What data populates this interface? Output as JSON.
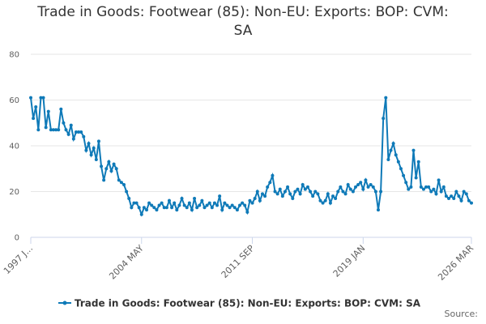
{
  "chart_data": {
    "type": "line",
    "title": "Trade in Goods: Footwear (85): Non-EU: Exports: BOP: CVM: SA",
    "source": "Source:",
    "categories": [
      "1997 J...",
      null,
      null,
      null,
      null,
      null,
      null,
      null,
      null,
      null,
      null,
      null,
      null,
      null,
      null,
      null,
      null,
      null,
      null,
      null,
      null,
      null,
      null,
      null,
      null,
      null,
      null,
      null,
      null,
      null,
      null,
      null,
      null,
      null,
      null,
      null,
      null,
      null,
      null,
      null,
      null,
      null,
      null,
      null,
      "2004 MAY",
      null,
      null,
      null,
      null,
      null,
      null,
      null,
      null,
      null,
      null,
      null,
      null,
      null,
      null,
      null,
      null,
      null,
      null,
      null,
      null,
      null,
      null,
      null,
      null,
      null,
      null,
      null,
      null,
      null,
      null,
      null,
      null,
      null,
      null,
      null,
      null,
      null,
      null,
      null,
      null,
      null,
      null,
      null,
      "2011 SEP",
      null,
      null,
      null,
      null,
      null,
      null,
      null,
      null,
      null,
      null,
      null,
      null,
      null,
      null,
      null,
      null,
      null,
      null,
      null,
      null,
      null,
      null,
      null,
      null,
      null,
      null,
      null,
      null,
      null,
      null,
      null,
      null,
      null,
      null,
      null,
      null,
      null,
      null,
      null,
      null,
      null,
      null,
      null,
      "2019 JAN",
      null,
      null,
      null,
      null,
      null,
      null,
      null,
      null,
      null,
      null,
      null,
      null,
      null,
      null,
      null,
      null,
      null,
      null,
      null,
      null,
      null,
      null,
      null,
      null,
      null,
      null,
      null,
      null,
      null,
      null,
      null,
      null,
      null,
      null,
      null,
      null,
      null,
      null,
      null,
      null,
      null,
      null,
      "2026 MAR"
    ],
    "series": [
      {
        "name": "Trade in Goods: Footwear (85): Non-EU: Exports: BOP: CVM: SA",
        "color": "#0f7ab8",
        "values": [
          61,
          52,
          57,
          47,
          61,
          61,
          48,
          55,
          47,
          47,
          47,
          47,
          56,
          50,
          47,
          45,
          49,
          43,
          46,
          46,
          46,
          44,
          38,
          41,
          36,
          39,
          34,
          42,
          31,
          25,
          30,
          33,
          29,
          32,
          30,
          25,
          24,
          23,
          20,
          17,
          13,
          15,
          15,
          13,
          10,
          13,
          12,
          15,
          14,
          13,
          12,
          14,
          15,
          13,
          13,
          16,
          13,
          15,
          12,
          14,
          17,
          14,
          13,
          15,
          12,
          17,
          13,
          14,
          16,
          13,
          14,
          15,
          13,
          15,
          14,
          18,
          12,
          15,
          14,
          13,
          14,
          13,
          12,
          14,
          15,
          14,
          11,
          16,
          15,
          17,
          20,
          16,
          19,
          18,
          22,
          24,
          27,
          20,
          19,
          21,
          18,
          20,
          22,
          19,
          17,
          20,
          21,
          19,
          23,
          21,
          22,
          20,
          18,
          20,
          19,
          16,
          15,
          16,
          19,
          15,
          18,
          17,
          20,
          22,
          20,
          19,
          23,
          21,
          20,
          22,
          23,
          24,
          21,
          25,
          22,
          23,
          22,
          20,
          12,
          20,
          52,
          61,
          34,
          38,
          41,
          36,
          33,
          30,
          27,
          24,
          21,
          22,
          38,
          26,
          33,
          22,
          21,
          22,
          22,
          20,
          21,
          19,
          25,
          20,
          22,
          18,
          17,
          18,
          17,
          20,
          18,
          16,
          20,
          19,
          16,
          15
        ]
      }
    ],
    "ylim": [
      0,
      80
    ],
    "yticks": [
      0,
      20,
      40,
      60,
      80
    ],
    "grid": true
  }
}
